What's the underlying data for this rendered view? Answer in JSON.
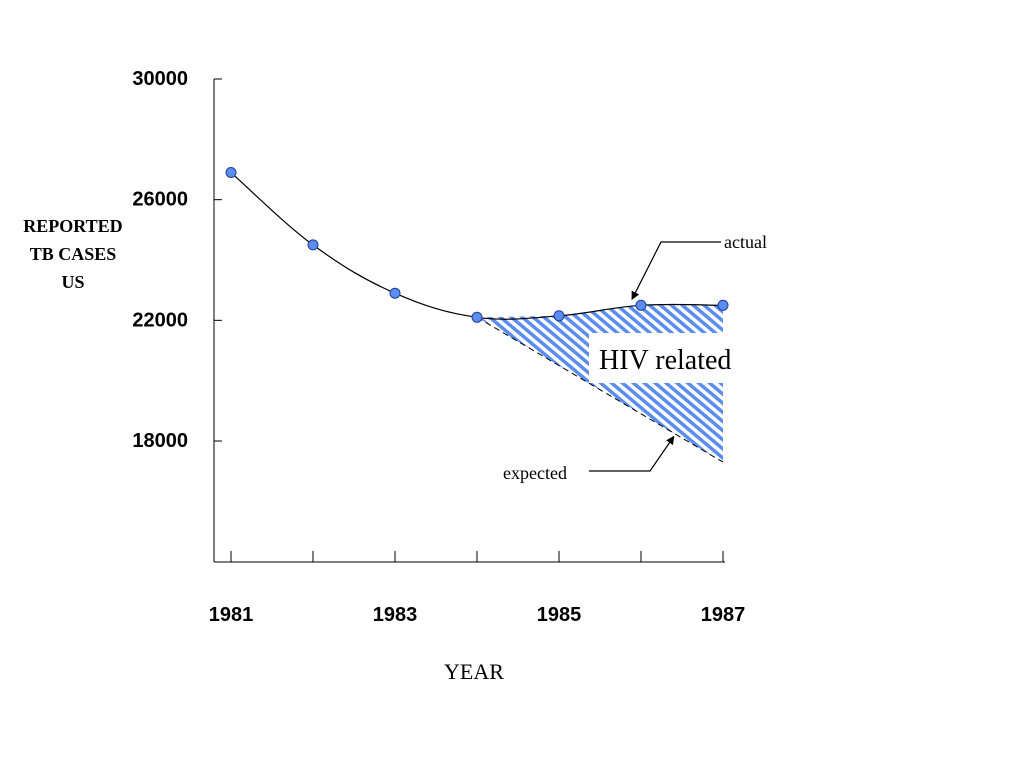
{
  "chart_data": {
    "type": "line",
    "title": "",
    "xlabel": "YEAR",
    "ylabel": [
      "REPORTED",
      "TB CASES",
      "US"
    ],
    "xlim": [
      1981,
      1987
    ],
    "ylim": [
      14000,
      30000
    ],
    "x_ticks": [
      1981,
      1982,
      1983,
      1984,
      1985,
      1986,
      1987
    ],
    "x_tick_labels": [
      {
        "x": 1981,
        "label": "1981"
      },
      {
        "x": 1983,
        "label": "1983"
      },
      {
        "x": 1985,
        "label": "1985"
      },
      {
        "x": 1987,
        "label": "1987"
      }
    ],
    "y_ticks": [
      {
        "y": 30000,
        "label": "30000"
      },
      {
        "y": 26000,
        "label": "26000"
      },
      {
        "y": 22000,
        "label": "22000"
      },
      {
        "y": 18000,
        "label": "18000"
      }
    ],
    "grid": false,
    "series": [
      {
        "name": "actual",
        "x": [
          1981,
          1982,
          1983,
          1984,
          1985,
          1986,
          1987
        ],
        "y": [
          26900,
          24500,
          22900,
          22100,
          22150,
          22500,
          22500
        ],
        "color": "#5b8def",
        "style": "solid"
      },
      {
        "name": "expected",
        "x": [
          1984,
          1987
        ],
        "y": [
          22100,
          17300
        ],
        "color": "#000000",
        "style": "dashed"
      }
    ],
    "shaded_region": {
      "label": "HIV related",
      "x_from": 1984,
      "x_to": 1987,
      "between": [
        "actual",
        "expected"
      ],
      "color": "#5b8def"
    },
    "annotations": [
      {
        "text": "actual",
        "points_to": {
          "x": 1986,
          "y": 22500
        }
      },
      {
        "text": "expected",
        "points_to": {
          "x": 1986.4,
          "y": 18250
        }
      }
    ]
  }
}
